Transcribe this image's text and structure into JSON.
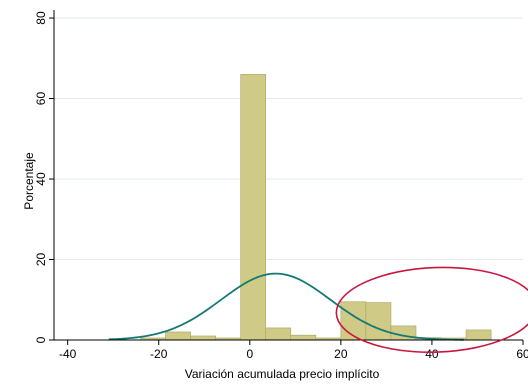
{
  "chart_data": {
    "type": "bar",
    "title": "",
    "xlabel": "Variación acumulada precio implícito",
    "ylabel": "Porcentaje",
    "xlim": [
      -43,
      60
    ],
    "ylim": [
      0,
      82
    ],
    "xticks": [
      "-40",
      "-20",
      "0",
      "20",
      "40",
      "60"
    ],
    "xtick_values": [
      -40,
      -20,
      0,
      20,
      40,
      60
    ],
    "yticks": [
      "0",
      "20",
      "40",
      "60",
      "80"
    ],
    "ytick_values": [
      0,
      20,
      40,
      60,
      80
    ],
    "grid": true,
    "bin_width": 5.5,
    "bars": [
      {
        "x0": -24,
        "x1": -18.5,
        "value": 0.5
      },
      {
        "x0": -18.5,
        "x1": -13,
        "value": 2
      },
      {
        "x0": -13,
        "x1": -7.5,
        "value": 1
      },
      {
        "x0": -7.5,
        "x1": -2,
        "value": 0.5
      },
      {
        "x0": -2,
        "x1": 3.5,
        "value": 66
      },
      {
        "x0": 3.5,
        "x1": 9,
        "value": 3
      },
      {
        "x0": 9,
        "x1": 14.5,
        "value": 1.2
      },
      {
        "x0": 14.5,
        "x1": 20,
        "value": 0.5
      },
      {
        "x0": 20,
        "x1": 25.5,
        "value": 9.5
      },
      {
        "x0": 25.5,
        "x1": 31,
        "value": 9.3
      },
      {
        "x0": 31,
        "x1": 36.5,
        "value": 3.5
      },
      {
        "x0": 36.5,
        "x1": 42,
        "value": 0.6
      },
      {
        "x0": 42,
        "x1": 47.5,
        "value": 0.5
      },
      {
        "x0": 47.5,
        "x1": 53,
        "value": 2.5
      }
    ],
    "normal_curve": {
      "mean": 5.7,
      "sd": 12.0,
      "peak": 16.5,
      "x_range": [
        -31,
        47
      ]
    },
    "annotation": {
      "type": "ellipse",
      "cx": 41,
      "cy": 7.5,
      "rx": 22,
      "ry": 10.5,
      "color": "#c8173f"
    },
    "colors": {
      "bar_fill": "#cfca85",
      "bar_stroke": "#a9a362",
      "curve": "#137a74",
      "grid": "#e3e9ee"
    }
  }
}
